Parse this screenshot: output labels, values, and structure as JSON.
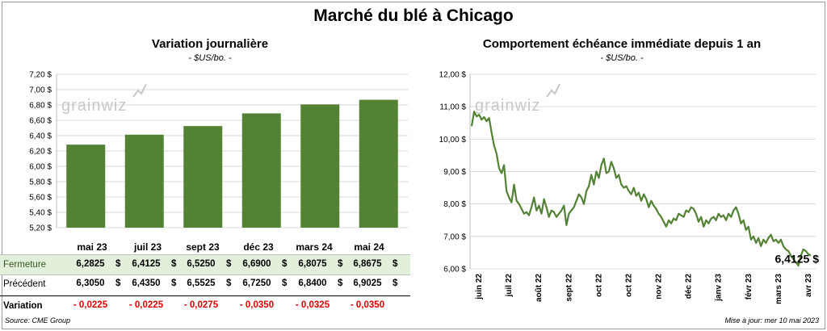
{
  "title": "Marché du blé à Chicago",
  "left_chart": {
    "title": "Variation  journalière",
    "unit": "- $US/bo. -"
  },
  "right_chart": {
    "title": "Comportement  échéance immédiate depuis 1 an",
    "unit": "- $US/bo. -",
    "last_value_label": "6,4125 $"
  },
  "watermark": "grainwiz",
  "table": {
    "headers": [
      "mai 23",
      "juil 23",
      "sept 23",
      "déc 23",
      "mars 24",
      "mai 24"
    ],
    "rows": [
      {
        "label": "Fermeture",
        "values": [
          "6,2825",
          "6,4125",
          "6,5250",
          "6,6900",
          "6,8075",
          "6,8675"
        ],
        "suffix": "$"
      },
      {
        "label": "Précédent",
        "values": [
          "6,3050",
          "6,4350",
          "6,5525",
          "6,7250",
          "6,8400",
          "6,9025"
        ],
        "suffix": "$"
      },
      {
        "label": "Variation",
        "values": [
          "- 0,0225",
          "- 0,0225",
          "- 0,0275",
          "- 0,0350",
          "- 0,0325",
          "- 0,0350"
        ]
      }
    ]
  },
  "footer": {
    "source": "Source: CME Group",
    "updated": "Mise à jour: mer 10 mai 2023"
  },
  "colors": {
    "bar": "#548235",
    "line": "#548235",
    "highlight_row": "#e2efda",
    "negative": "#e00000"
  },
  "chart_data": [
    {
      "type": "bar",
      "categories": [
        "mai 23",
        "juil 23",
        "sept 23",
        "déc 23",
        "mars 24",
        "mai 24"
      ],
      "values": [
        6.2825,
        6.4125,
        6.525,
        6.69,
        6.8075,
        6.8675
      ],
      "ylim": [
        5.2,
        7.2
      ],
      "yticks": [
        "5,20 $",
        "5,40 $",
        "5,60 $",
        "5,80 $",
        "6,00 $",
        "6,20 $",
        "6,40 $",
        "6,60 $",
        "6,80 $",
        "7,00 $",
        "7,20 $"
      ],
      "grid": true
    },
    {
      "type": "line",
      "x_labels": [
        "juin 22",
        "juil 22",
        "août 22",
        "sept 22",
        "oct 22",
        "oct 22",
        "nov 22",
        "déc 22",
        "janv 23",
        "févr 23",
        "mars 23",
        "avr 23"
      ],
      "ylim": [
        6.0,
        12.0
      ],
      "yticks": [
        "6,00 $",
        "7,00 $",
        "8,00 $",
        "9,00 $",
        "10,00 $",
        "11,00 $",
        "12,00 $"
      ],
      "grid": true,
      "values": [
        10.4,
        10.85,
        10.7,
        10.75,
        10.6,
        10.68,
        10.55,
        10.65,
        10.2,
        9.8,
        9.55,
        9.1,
        8.95,
        9.2,
        8.4,
        8.2,
        8.05,
        8.6,
        8.1,
        8.0,
        7.85,
        7.7,
        7.75,
        7.65,
        7.9,
        8.2,
        7.8,
        7.95,
        7.7,
        8.15,
        7.9,
        7.6,
        7.8,
        7.75,
        7.6,
        7.7,
        7.8,
        7.95,
        7.35,
        7.7,
        7.8,
        7.9,
        8.1,
        8.3,
        8.2,
        8.0,
        8.4,
        8.55,
        8.9,
        8.6,
        9.0,
        8.8,
        9.2,
        9.4,
        8.95,
        9.0,
        9.3,
        9.1,
        8.8,
        8.9,
        8.6,
        8.5,
        8.55,
        8.4,
        8.3,
        8.5,
        8.25,
        8.35,
        8.1,
        8.3,
        8.15,
        7.9,
        8.1,
        7.95,
        7.85,
        7.7,
        7.6,
        7.45,
        7.3,
        7.5,
        7.4,
        7.55,
        7.5,
        7.7,
        7.65,
        7.6,
        7.8,
        7.75,
        7.9,
        7.85,
        7.7,
        7.45,
        7.6,
        7.3,
        7.5,
        7.4,
        7.55,
        7.6,
        7.5,
        7.7,
        7.6,
        7.65,
        7.5,
        7.7,
        7.6,
        7.8,
        7.9,
        7.7,
        7.4,
        7.5,
        7.2,
        7.3,
        6.9,
        7.0,
        6.8,
        6.95,
        6.7,
        6.9,
        6.8,
        6.95,
        7.05,
        6.85,
        6.9,
        6.8,
        6.9,
        6.7,
        6.6,
        6.55,
        6.4,
        6.3,
        6.2,
        6.1,
        6.4,
        6.6,
        6.55,
        6.45,
        6.41
      ]
    }
  ]
}
